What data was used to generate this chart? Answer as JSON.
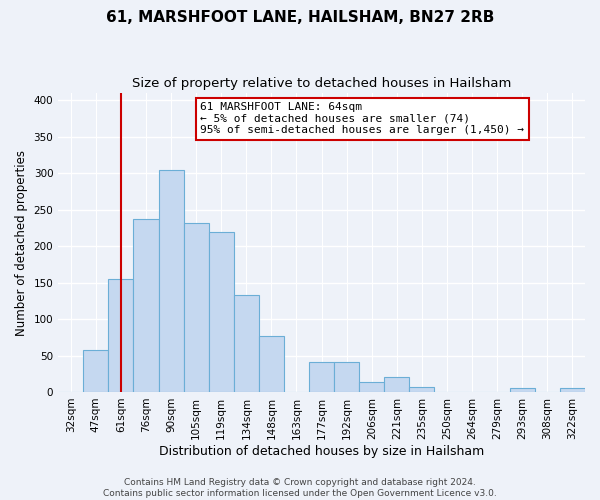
{
  "title": "61, MARSHFOOT LANE, HAILSHAM, BN27 2RB",
  "subtitle": "Size of property relative to detached houses in Hailsham",
  "xlabel": "Distribution of detached houses by size in Hailsham",
  "ylabel": "Number of detached properties",
  "bar_labels": [
    "32sqm",
    "47sqm",
    "61sqm",
    "76sqm",
    "90sqm",
    "105sqm",
    "119sqm",
    "134sqm",
    "148sqm",
    "163sqm",
    "177sqm",
    "192sqm",
    "206sqm",
    "221sqm",
    "235sqm",
    "250sqm",
    "264sqm",
    "279sqm",
    "293sqm",
    "308sqm",
    "322sqm"
  ],
  "bar_values": [
    0,
    57,
    155,
    237,
    305,
    232,
    219,
    133,
    77,
    0,
    41,
    41,
    13,
    20,
    7,
    0,
    0,
    0,
    5,
    0,
    5
  ],
  "bar_color": "#c5d8f0",
  "bar_edge_color": "#6baed6",
  "vline_x_idx": 2,
  "vline_color": "#cc0000",
  "annotation_lines": [
    "61 MARSHFOOT LANE: 64sqm",
    "← 5% of detached houses are smaller (74)",
    "95% of semi-detached houses are larger (1,450) →"
  ],
  "annotation_box_color": "#ffffff",
  "annotation_box_edge_color": "#cc0000",
  "ylim": [
    0,
    410
  ],
  "yticks": [
    0,
    50,
    100,
    150,
    200,
    250,
    300,
    350,
    400
  ],
  "footer_lines": [
    "Contains HM Land Registry data © Crown copyright and database right 2024.",
    "Contains public sector information licensed under the Open Government Licence v3.0."
  ],
  "bg_color": "#eef2f9",
  "plot_bg_color": "#eef2f9",
  "grid_color": "#ffffff",
  "title_fontsize": 11,
  "subtitle_fontsize": 9.5,
  "xlabel_fontsize": 9,
  "ylabel_fontsize": 8.5,
  "tick_fontsize": 7.5,
  "annotation_fontsize": 8,
  "footer_fontsize": 6.5
}
